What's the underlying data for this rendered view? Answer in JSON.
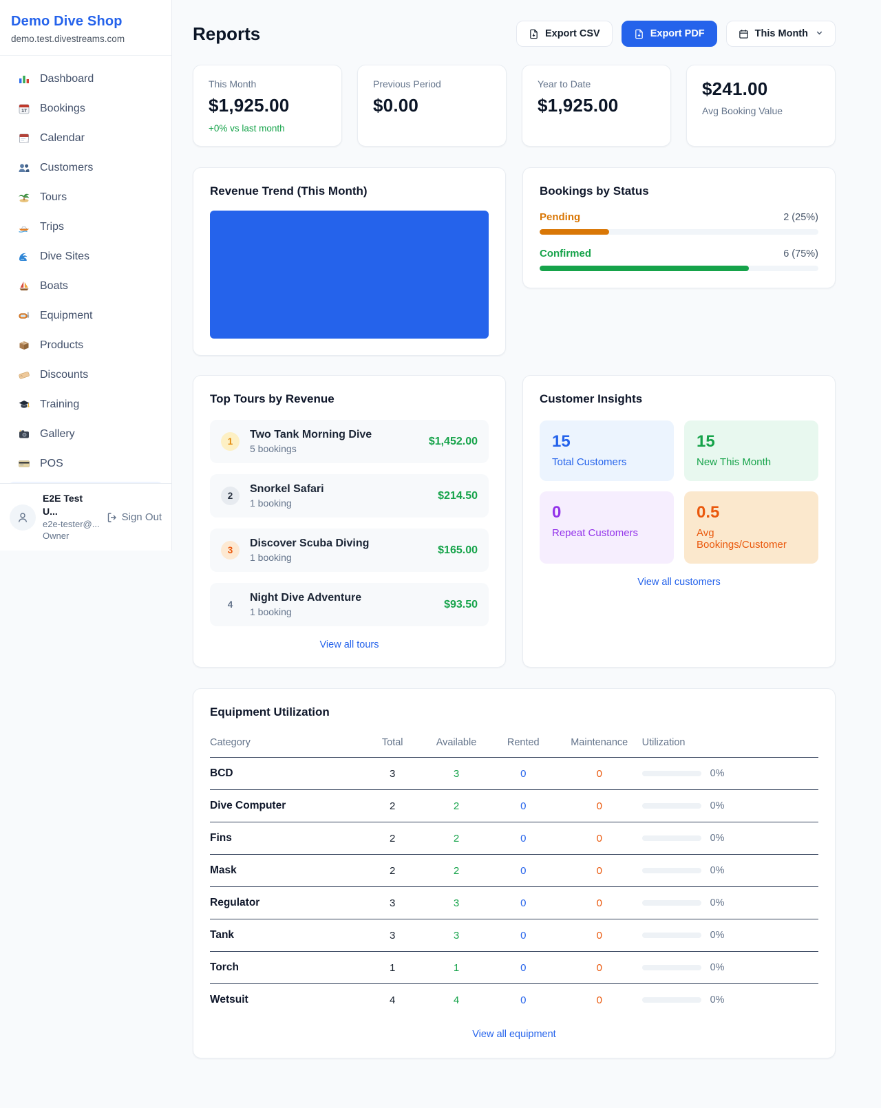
{
  "colors": {
    "brand_blue": "#2563eb",
    "green": "#16a34a",
    "pending_orange": "#d97706",
    "maintenance_orange": "#ea580c",
    "purple": "#9333ea",
    "page_bg": "#f8fafc"
  },
  "sidebar": {
    "brand": {
      "name": "Demo Dive Shop",
      "domain": "demo.test.divestreams.com"
    },
    "items": [
      {
        "label": "Dashboard"
      },
      {
        "label": "Bookings"
      },
      {
        "label": "Calendar"
      },
      {
        "label": "Customers"
      },
      {
        "label": "Tours"
      },
      {
        "label": "Trips"
      },
      {
        "label": "Dive Sites"
      },
      {
        "label": "Boats"
      },
      {
        "label": "Equipment"
      },
      {
        "label": "Products"
      },
      {
        "label": "Discounts"
      },
      {
        "label": "Training"
      },
      {
        "label": "Gallery"
      },
      {
        "label": "POS"
      }
    ],
    "user": {
      "name": "E2E Test U...",
      "email": "e2e-tester@...",
      "role": "Owner",
      "sign_out": "Sign Out"
    }
  },
  "header": {
    "title": "Reports",
    "export_csv": "Export CSV",
    "export_pdf": "Export PDF",
    "period": "This Month"
  },
  "stats": {
    "this_month": {
      "label": "This Month",
      "value": "$1,925.00",
      "delta": "+0% vs last month"
    },
    "previous_period": {
      "label": "Previous Period",
      "value": "$0.00"
    },
    "year_to_date": {
      "label": "Year to Date",
      "value": "$1,925.00"
    },
    "avg_booking": {
      "value": "$241.00",
      "label": "Avg Booking Value"
    }
  },
  "revenue_trend": {
    "title": "Revenue Trend (This Month)",
    "chart": {
      "type": "bar",
      "fill_pct": 100,
      "bar_color": "#2563eb"
    }
  },
  "bookings_by_status": {
    "title": "Bookings by Status",
    "rows": [
      {
        "label": "Pending",
        "value": "2 (25%)",
        "count": 2,
        "pct": 25,
        "color": "#d97706"
      },
      {
        "label": "Confirmed",
        "value": "6 (75%)",
        "count": 6,
        "pct": 75,
        "color": "#16a34a"
      }
    ]
  },
  "top_tours": {
    "title": "Top Tours by Revenue",
    "rows": [
      {
        "rank": "1",
        "name": "Two Tank Morning Dive",
        "bookings": "5 bookings",
        "amount": "$1,452.00"
      },
      {
        "rank": "2",
        "name": "Snorkel Safari",
        "bookings": "1 booking",
        "amount": "$214.50"
      },
      {
        "rank": "3",
        "name": "Discover Scuba Diving",
        "bookings": "1 booking",
        "amount": "$165.00"
      },
      {
        "rank": "4",
        "name": "Night Dive Adventure",
        "bookings": "1 booking",
        "amount": "$93.50"
      }
    ],
    "link": "View all tours"
  },
  "customer_insights": {
    "title": "Customer Insights",
    "tiles": [
      {
        "value": "15",
        "label": "Total Customers"
      },
      {
        "value": "15",
        "label": "New This Month"
      },
      {
        "value": "0",
        "label": "Repeat Customers"
      },
      {
        "value": "0.5",
        "label": "Avg Bookings/Customer"
      }
    ],
    "link": "View all customers"
  },
  "equipment": {
    "title": "Equipment Utilization",
    "columns": [
      "Category",
      "Total",
      "Available",
      "Rented",
      "Maintenance",
      "Utilization"
    ],
    "rows": [
      {
        "category": "BCD",
        "total": "3",
        "available": "3",
        "rented": "0",
        "maintenance": "0",
        "utilization": "0%"
      },
      {
        "category": "Dive Computer",
        "total": "2",
        "available": "2",
        "rented": "0",
        "maintenance": "0",
        "utilization": "0%"
      },
      {
        "category": "Fins",
        "total": "2",
        "available": "2",
        "rented": "0",
        "maintenance": "0",
        "utilization": "0%"
      },
      {
        "category": "Mask",
        "total": "2",
        "available": "2",
        "rented": "0",
        "maintenance": "0",
        "utilization": "0%"
      },
      {
        "category": "Regulator",
        "total": "3",
        "available": "3",
        "rented": "0",
        "maintenance": "0",
        "utilization": "0%"
      },
      {
        "category": "Tank",
        "total": "3",
        "available": "3",
        "rented": "0",
        "maintenance": "0",
        "utilization": "0%"
      },
      {
        "category": "Torch",
        "total": "1",
        "available": "1",
        "rented": "0",
        "maintenance": "0",
        "utilization": "0%"
      },
      {
        "category": "Wetsuit",
        "total": "4",
        "available": "4",
        "rented": "0",
        "maintenance": "0",
        "utilization": "0%"
      }
    ],
    "link": "View all equipment"
  }
}
